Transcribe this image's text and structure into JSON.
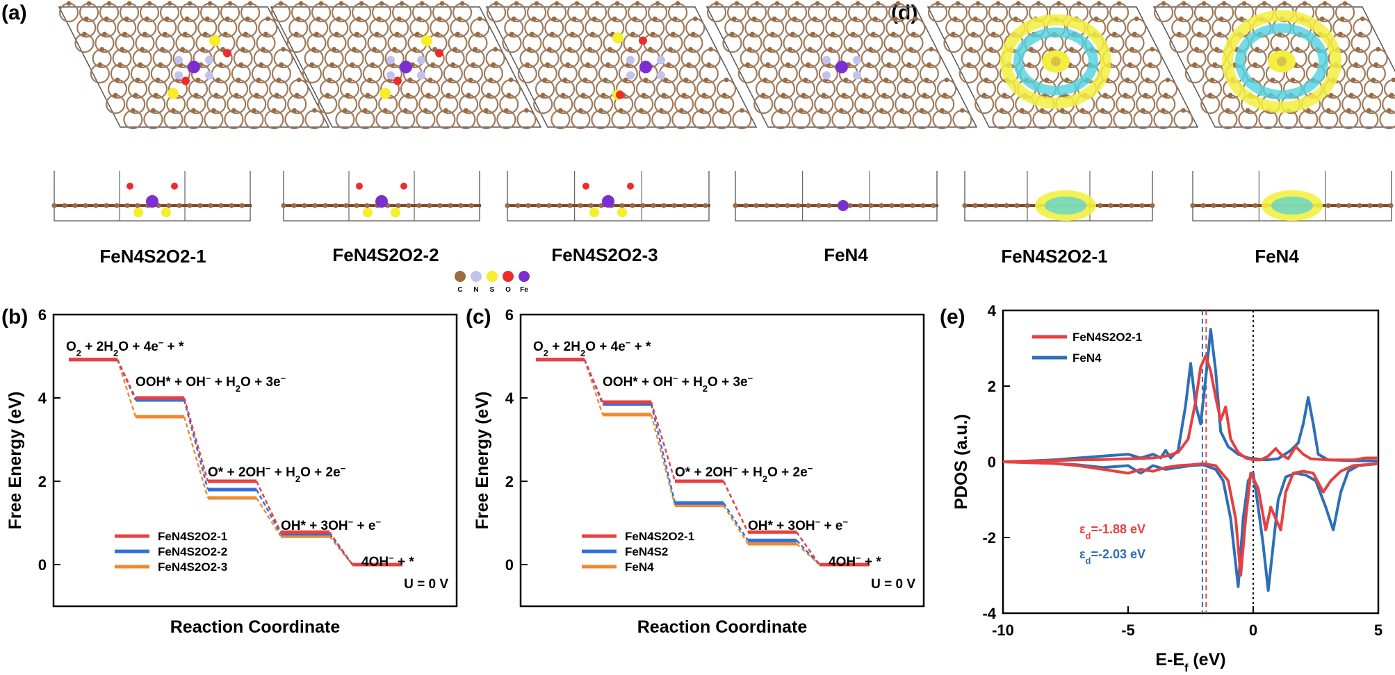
{
  "figure": {
    "panel_labels": [
      "(a)",
      "(b)",
      "(c)",
      "(d)",
      "(e)"
    ],
    "structure_labels": [
      "FeN4S2O2-1",
      "FeN4S2O2-2",
      "FeN4S2O2-3",
      "FeN4",
      "FeN4S2O2-1",
      "FeN4"
    ],
    "element_legend": [
      {
        "symbol": "C",
        "color": "#9b6b45"
      },
      {
        "symbol": "N",
        "color": "#c2c2ee"
      },
      {
        "symbol": "S",
        "color": "#f5ee2a"
      },
      {
        "symbol": "O",
        "color": "#ee2b2b"
      },
      {
        "symbol": "Fe",
        "color": "#7b2fd0"
      }
    ],
    "colors": {
      "red": "#e84040",
      "blue": "#2f6fe0",
      "orange": "#f08a30",
      "dos_blue": "#2d6fb6",
      "carbon": "#9b6b45",
      "cell": "#555555"
    }
  },
  "chart_data": [
    {
      "type": "line",
      "panel": "(b)",
      "title": "",
      "xlabel": "Reaction Coordinate",
      "ylabel": "Free Energy (eV)",
      "ylim": [
        -1,
        6
      ],
      "yticks": [
        0,
        2,
        4,
        6
      ],
      "categories": [
        "O₂ + 2H₂O + 4e⁻ + *",
        "OOH* + OH⁻ + H₂O + 3e⁻",
        "O* + 2OH⁻ + H₂O + 2e⁻",
        "OH* + 3OH⁻ + e⁻",
        "4OH⁻ + *"
      ],
      "annotation": "U = 0 V",
      "legend_position": "lower-left",
      "series": [
        {
          "name": "FeN4S2O2-1",
          "color": "#e84040",
          "values": [
            4.92,
            4.0,
            2.0,
            0.78,
            0.0
          ]
        },
        {
          "name": "FeN4S2O2-2",
          "color": "#2f6fe0",
          "values": [
            4.92,
            3.95,
            1.8,
            0.74,
            0.0
          ]
        },
        {
          "name": "FeN4S2O2-3",
          "color": "#f08a30",
          "values": [
            4.92,
            3.55,
            1.6,
            0.68,
            0.0
          ]
        }
      ]
    },
    {
      "type": "line",
      "panel": "(c)",
      "title": "",
      "xlabel": "Reaction Coordinate",
      "ylabel": "Free Energy (eV)",
      "ylim": [
        -1,
        6
      ],
      "yticks": [
        0,
        2,
        4,
        6
      ],
      "categories": [
        "O₂ + 2H₂O + 4e⁻ + *",
        "OOH* + OH⁻ + H₂O + 3e⁻",
        "O* + 2OH⁻ + H₂O + 2e⁻",
        "OH* + 3OH⁻ + e⁻",
        "4OH⁻ + *"
      ],
      "annotation": "U = 0 V",
      "legend_position": "lower-left",
      "series": [
        {
          "name": "FeN4S2O2-1",
          "color": "#e84040",
          "values": [
            4.92,
            3.9,
            2.0,
            0.78,
            0.0
          ]
        },
        {
          "name": "FeN4S2",
          "color": "#2f6fe0",
          "values": [
            4.92,
            3.85,
            1.48,
            0.58,
            0.0
          ]
        },
        {
          "name": "FeN4",
          "color": "#f08a30",
          "values": [
            4.92,
            3.6,
            1.42,
            0.5,
            0.0
          ]
        }
      ]
    },
    {
      "type": "line",
      "panel": "(e)",
      "title": "",
      "xlabel": "E-Eƒ (eV)",
      "xlabel_main": "E-E",
      "xlabel_sub": "f",
      "xlabel_tail": " (eV)",
      "ylabel": "PDOS (a.u.)",
      "xlim": [
        -10,
        5
      ],
      "ylim": [
        -4,
        4
      ],
      "xticks": [
        -10,
        -5,
        0,
        5
      ],
      "yticks": [
        -4,
        -2,
        0,
        2,
        4
      ],
      "legend_position": "top-left",
      "vlines": [
        {
          "x": -1.88,
          "color": "#e84040"
        },
        {
          "x": -2.03,
          "color": "#2d6fb6"
        },
        {
          "x": 0,
          "color": "#000000"
        }
      ],
      "annotations": [
        {
          "sym": "ε",
          "sub": "d",
          "text": "=-1.88 eV",
          "color": "#e84040"
        },
        {
          "sym": "ε",
          "sub": "d",
          "text": "=-2.03 eV",
          "color": "#2d6fb6"
        }
      ],
      "series": [
        {
          "name": "FeN4S2O2-1",
          "color": "#e84040",
          "up": [
            [
              -10,
              0
            ],
            [
              -9,
              0.02
            ],
            [
              -8,
              0.03
            ],
            [
              -7,
              0.05
            ],
            [
              -6,
              0.06
            ],
            [
              -5,
              0.08
            ],
            [
              -4,
              0.1
            ],
            [
              -3.5,
              0.15
            ],
            [
              -3,
              0.25
            ],
            [
              -2.6,
              0.6
            ],
            [
              -2.3,
              1.6
            ],
            [
              -2.1,
              2.5
            ],
            [
              -1.9,
              2.8
            ],
            [
              -1.7,
              2.4
            ],
            [
              -1.5,
              1.7
            ],
            [
              -1.3,
              1.1
            ],
            [
              -1.1,
              1.45
            ],
            [
              -0.9,
              0.6
            ],
            [
              -0.6,
              0.25
            ],
            [
              -0.3,
              0.1
            ],
            [
              0,
              0.05
            ],
            [
              0.3,
              0.05
            ],
            [
              0.6,
              0.15
            ],
            [
              0.9,
              0.35
            ],
            [
              1.1,
              0.2
            ],
            [
              1.4,
              0.08
            ],
            [
              1.7,
              0.4
            ],
            [
              2.0,
              0.2
            ],
            [
              2.3,
              0.08
            ],
            [
              3,
              0.05
            ],
            [
              4,
              0.05
            ],
            [
              4.5,
              0.1
            ],
            [
              5,
              0.1
            ]
          ],
          "down": [
            [
              -10,
              0
            ],
            [
              -9,
              -0.02
            ],
            [
              -8,
              -0.04
            ],
            [
              -7,
              -0.1
            ],
            [
              -6,
              -0.2
            ],
            [
              -5,
              -0.3
            ],
            [
              -4.5,
              -0.2
            ],
            [
              -4,
              -0.25
            ],
            [
              -3.5,
              -0.15
            ],
            [
              -3,
              -0.1
            ],
            [
              -2.5,
              -0.08
            ],
            [
              -2,
              -0.05
            ],
            [
              -1.5,
              -0.1
            ],
            [
              -1,
              -0.5
            ],
            [
              -0.7,
              -1.5
            ],
            [
              -0.5,
              -3.0
            ],
            [
              -0.3,
              -1.5
            ],
            [
              -0.1,
              -0.3
            ],
            [
              0.2,
              -0.7
            ],
            [
              0.5,
              -1.8
            ],
            [
              0.7,
              -1.2
            ],
            [
              0.9,
              -1.5
            ],
            [
              1.1,
              -1.8
            ],
            [
              1.3,
              -0.8
            ],
            [
              1.6,
              -0.3
            ],
            [
              2.0,
              -0.25
            ],
            [
              2.4,
              -0.3
            ],
            [
              2.8,
              -0.8
            ],
            [
              3.1,
              -0.5
            ],
            [
              3.5,
              -0.25
            ],
            [
              4,
              -0.1
            ],
            [
              5,
              -0.05
            ]
          ]
        },
        {
          "name": "FeN4",
          "color": "#2d6fb6",
          "up": [
            [
              -10,
              0
            ],
            [
              -9,
              0.02
            ],
            [
              -8,
              0.05
            ],
            [
              -7,
              0.1
            ],
            [
              -6,
              0.15
            ],
            [
              -5,
              0.2
            ],
            [
              -4.5,
              0.1
            ],
            [
              -4,
              0.2
            ],
            [
              -3.7,
              0.1
            ],
            [
              -3.5,
              0.3
            ],
            [
              -3.3,
              0.1
            ],
            [
              -3,
              0.3
            ],
            [
              -2.7,
              1.5
            ],
            [
              -2.5,
              2.6
            ],
            [
              -2.3,
              1.5
            ],
            [
              -2.1,
              1.0
            ],
            [
              -1.9,
              2.2
            ],
            [
              -1.7,
              3.5
            ],
            [
              -1.5,
              2.4
            ],
            [
              -1.3,
              0.8
            ],
            [
              -1.0,
              0.4
            ],
            [
              -0.6,
              0.2
            ],
            [
              -0.2,
              0.1
            ],
            [
              0.5,
              0.05
            ],
            [
              1.0,
              0.08
            ],
            [
              1.5,
              0.3
            ],
            [
              1.8,
              0.5
            ],
            [
              2.0,
              1.0
            ],
            [
              2.2,
              1.7
            ],
            [
              2.4,
              1.0
            ],
            [
              2.6,
              0.2
            ],
            [
              3,
              0.05
            ],
            [
              4,
              0.03
            ],
            [
              5,
              0.02
            ]
          ],
          "down": [
            [
              -10,
              0
            ],
            [
              -9,
              -0.02
            ],
            [
              -8,
              -0.04
            ],
            [
              -7,
              -0.08
            ],
            [
              -6,
              -0.15
            ],
            [
              -5,
              -0.1
            ],
            [
              -4.5,
              -0.3
            ],
            [
              -4,
              -0.1
            ],
            [
              -3.5,
              -0.2
            ],
            [
              -3,
              -0.15
            ],
            [
              -2.5,
              -0.1
            ],
            [
              -2,
              -0.08
            ],
            [
              -1.5,
              -0.2
            ],
            [
              -1.2,
              -0.5
            ],
            [
              -0.9,
              -1.5
            ],
            [
              -0.6,
              -3.3
            ],
            [
              -0.4,
              -1.5
            ],
            [
              -0.2,
              -0.5
            ],
            [
              0,
              -0.3
            ],
            [
              0.2,
              -1.2
            ],
            [
              0.4,
              -2.2
            ],
            [
              0.6,
              -3.4
            ],
            [
              0.8,
              -2.2
            ],
            [
              1.0,
              -1.0
            ],
            [
              1.3,
              -0.4
            ],
            [
              1.7,
              -0.3
            ],
            [
              2.1,
              -0.35
            ],
            [
              2.5,
              -0.5
            ],
            [
              2.9,
              -1.2
            ],
            [
              3.2,
              -1.8
            ],
            [
              3.5,
              -0.8
            ],
            [
              3.8,
              -0.25
            ],
            [
              4.2,
              -0.1
            ],
            [
              5,
              -0.05
            ]
          ]
        }
      ]
    }
  ]
}
